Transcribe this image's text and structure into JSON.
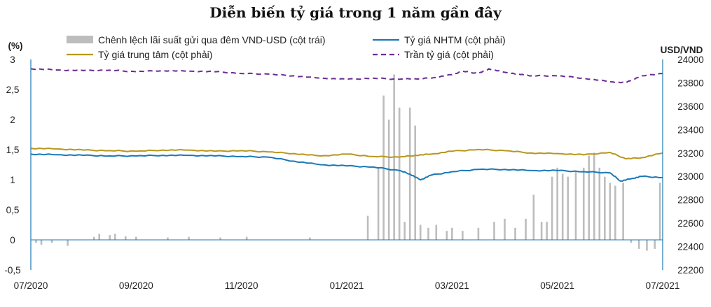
{
  "title": "Diễn biến tỷ giá trong 1 năm gần đây",
  "colors": {
    "spread": "#bdbdbd",
    "nhtm": "#1a78b8",
    "central": "#b8961e",
    "ceiling": "#6a2d91",
    "axis": "#1a78b8"
  },
  "chart_data": {
    "type": "bar+line",
    "title": "Diễn biến tỷ giá trong 1 năm gần đây",
    "left_unit": "(%)",
    "right_unit": "USD/VND",
    "left_ticks": [
      "-0,5",
      "0",
      "0,5",
      "1",
      "1,5",
      "2",
      "2,5",
      "3"
    ],
    "left_ylim": [
      -0.5,
      3
    ],
    "right_ticks": [
      "22200",
      "22400",
      "22600",
      "22800",
      "23000",
      "23200",
      "23400",
      "23600",
      "23800",
      "24000"
    ],
    "right_ylim": [
      22200,
      24000
    ],
    "x_ticks": [
      "07/2020",
      "09/2020",
      "11/2020",
      "01/2021",
      "03/2021",
      "05/2021",
      "07/2021"
    ],
    "x_range_months": [
      0,
      12
    ],
    "legend": [
      {
        "key": "spread",
        "label": "Chênh lệch lãi suất gửi qua đêm VND-USD (cột trái)",
        "style": "bar"
      },
      {
        "key": "nhtm",
        "label": "Tỷ giá NHTM (cột phải)",
        "style": "solid"
      },
      {
        "key": "central",
        "label": "Tỷ giá trung tâm (cột phải)",
        "style": "solid"
      },
      {
        "key": "ceiling",
        "label": "Trần tỷ giá (cột phải)",
        "style": "dashed"
      }
    ],
    "series": [
      {
        "key": "ceiling",
        "axis": "right",
        "x": [
          0,
          0.5,
          1,
          1.5,
          2,
          2.5,
          3,
          3.5,
          4,
          4.5,
          5,
          5.5,
          6,
          6.5,
          7,
          7.3,
          7.6,
          8,
          8.2,
          8.5,
          8.7,
          9,
          9.3,
          9.5,
          10,
          10.5,
          11,
          11.3,
          11.6,
          12
        ],
        "y": [
          23920,
          23910,
          23905,
          23908,
          23895,
          23905,
          23900,
          23895,
          23880,
          23875,
          23860,
          23840,
          23830,
          23840,
          23830,
          23835,
          23840,
          23870,
          23900,
          23880,
          23920,
          23890,
          23870,
          23860,
          23860,
          23840,
          23810,
          23800,
          23860,
          23880
        ]
      },
      {
        "key": "central",
        "axis": "right",
        "x": [
          0,
          0.5,
          1,
          1.5,
          2,
          2.5,
          3,
          3.5,
          4,
          4.5,
          5,
          5.5,
          6,
          6.5,
          7,
          7.3,
          7.6,
          8,
          8.5,
          9,
          9.5,
          10,
          10.5,
          11,
          11.3,
          11.6,
          12
        ],
        "y": [
          23240,
          23235,
          23225,
          23220,
          23215,
          23225,
          23225,
          23215,
          23220,
          23210,
          23195,
          23175,
          23190,
          23170,
          23165,
          23180,
          23190,
          23215,
          23230,
          23220,
          23200,
          23195,
          23185,
          23205,
          23150,
          23160,
          23200
        ]
      },
      {
        "key": "nhtm",
        "axis": "right",
        "x": [
          0,
          0.5,
          1,
          1.5,
          2,
          2.5,
          3,
          3.5,
          4,
          4.5,
          5,
          5.5,
          6,
          6.5,
          7,
          7.2,
          7.4,
          7.6,
          8,
          8.5,
          9,
          9.5,
          10,
          10.5,
          11,
          11.2,
          11.4,
          11.6,
          12
        ],
        "y": [
          23190,
          23185,
          23180,
          23175,
          23175,
          23180,
          23180,
          23175,
          23170,
          23165,
          23130,
          23100,
          23090,
          23080,
          23050,
          23020,
          22970,
          23010,
          23040,
          23060,
          23060,
          23050,
          23050,
          23040,
          23030,
          22960,
          22980,
          23000,
          22990
        ]
      }
    ],
    "bars": {
      "key": "spread",
      "axis": "left",
      "x": [
        0.1,
        0.2,
        0.4,
        0.7,
        1.2,
        1.3,
        1.5,
        1.6,
        1.8,
        2.0,
        2.6,
        3.0,
        3.6,
        4.1,
        5.3,
        6.4,
        6.6,
        6.7,
        6.8,
        6.9,
        7.0,
        7.1,
        7.2,
        7.3,
        7.4,
        7.55,
        7.7,
        7.9,
        8.0,
        8.2,
        8.5,
        8.8,
        9.0,
        9.2,
        9.4,
        9.55,
        9.7,
        9.8,
        9.9,
        10.0,
        10.1,
        10.2,
        10.35,
        10.5,
        10.6,
        10.7,
        10.8,
        10.9,
        11.0,
        11.1,
        11.25,
        11.4,
        11.55,
        11.7,
        11.85,
        11.95
      ],
      "values": [
        -0.05,
        -0.08,
        -0.05,
        -0.1,
        0.05,
        0.1,
        0.08,
        0.1,
        0.06,
        0.05,
        0.04,
        0.05,
        0.04,
        0.05,
        0.04,
        0.4,
        1.2,
        2.4,
        2.0,
        2.75,
        2.2,
        0.3,
        2.2,
        1.9,
        0.25,
        0.2,
        0.25,
        0.15,
        0.2,
        0.15,
        0.2,
        0.3,
        0.35,
        0.2,
        0.35,
        0.75,
        0.3,
        0.3,
        1.05,
        1.2,
        1.1,
        1.05,
        1.15,
        1.2,
        1.4,
        1.45,
        1.2,
        1.05,
        0.95,
        0.9,
        0.95,
        -0.05,
        -0.15,
        -0.18,
        -0.15,
        0.95
      ]
    }
  }
}
